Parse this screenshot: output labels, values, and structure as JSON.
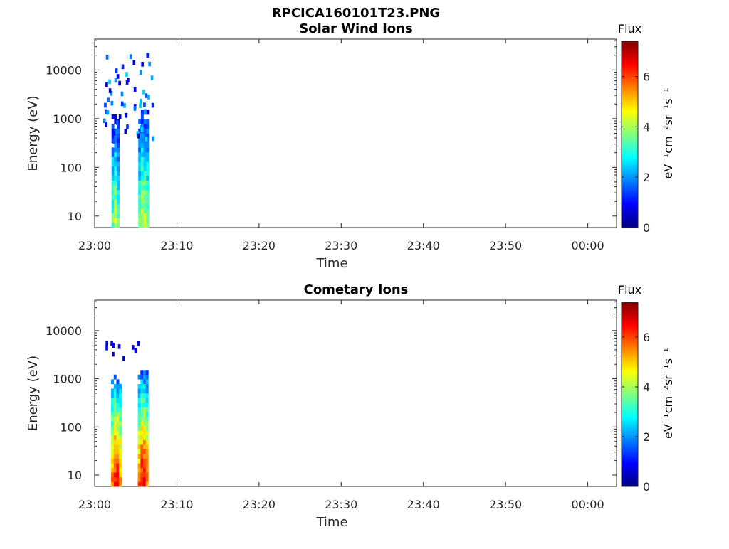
{
  "figure": {
    "title": "RPCICA160101T23.PNG"
  },
  "chart_data": [
    {
      "type": "heatmap",
      "title": "Solar Wind Ions",
      "xlabel": "Time",
      "ylabel": "Energy (eV)",
      "x_ticks": [
        "23:00",
        "23:10",
        "23:20",
        "23:30",
        "23:40",
        "23:50",
        "00:00"
      ],
      "x_range_minutes": [
        0,
        63.5
      ],
      "y_scale": "log",
      "y_ticks": [
        "10",
        "100",
        "1000",
        "10000"
      ],
      "y_range": [
        5.8,
        43000
      ],
      "colorbar": {
        "label": "Flux",
        "unit": "eV⁻¹cm⁻²sr⁻¹s⁻¹",
        "ticks": [
          "0",
          "2",
          "4",
          "6"
        ],
        "range": [
          0,
          7.4
        ],
        "colormap": "jet"
      },
      "bursts": [
        {
          "t_center_min": 2.6,
          "width_min": 1.1,
          "energy_low_eV": 6,
          "energy_high_eV": 1000,
          "peak_flux": 4.2
        },
        {
          "t_center_min": 5.9,
          "width_min": 1.2,
          "energy_low_eV": 6,
          "energy_high_eV": 1500,
          "peak_flux": 4.5
        }
      ],
      "sparse_high_energy": {
        "t_range_min": [
          1,
          7
        ],
        "energy_range_eV": [
          300,
          20000
        ],
        "flux_range": [
          0.5,
          2.6
        ]
      }
    },
    {
      "type": "heatmap",
      "title": "Cometary Ions",
      "xlabel": "Time",
      "ylabel": "Energy (eV)",
      "x_ticks": [
        "23:00",
        "23:10",
        "23:20",
        "23:30",
        "23:40",
        "23:50",
        "00:00"
      ],
      "x_range_minutes": [
        0,
        63.5
      ],
      "y_scale": "log",
      "y_ticks": [
        "10",
        "100",
        "1000",
        "10000"
      ],
      "y_range": [
        5.8,
        43000
      ],
      "colorbar": {
        "label": "Flux",
        "unit": "eV⁻¹cm⁻²sr⁻¹s⁻¹",
        "ticks": [
          "0",
          "2",
          "4",
          "6"
        ],
        "range": [
          0,
          7.4
        ],
        "colormap": "jet"
      },
      "bursts": [
        {
          "t_center_min": 2.6,
          "width_min": 1.2,
          "energy_low_eV": 6,
          "energy_high_eV": 1200,
          "peak_flux": 6.8
        },
        {
          "t_center_min": 5.9,
          "width_min": 1.3,
          "energy_low_eV": 6,
          "energy_high_eV": 1300,
          "peak_flux": 7.0
        }
      ],
      "sparse_high_energy": {
        "t_range_min": [
          1.3,
          5.3
        ],
        "energy_range_eV": [
          2000,
          9000
        ],
        "flux_range": [
          0.2,
          1.0
        ]
      }
    }
  ]
}
